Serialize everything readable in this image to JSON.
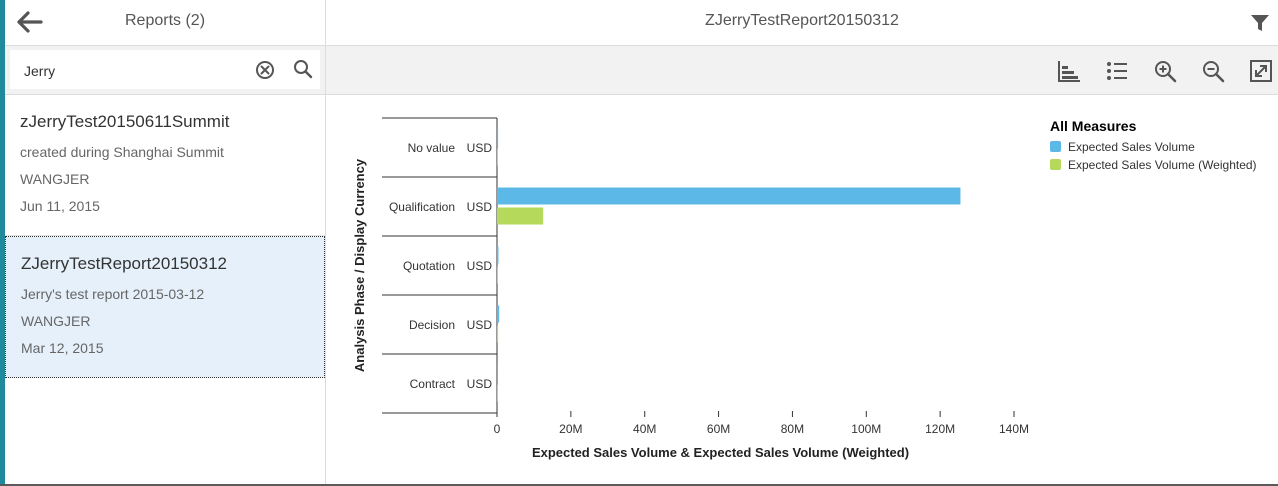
{
  "master": {
    "title": "Reports (2)"
  },
  "detail": {
    "title": "ZJerryTestReport20150312"
  },
  "search": {
    "value": "Jerry",
    "placeholder": ""
  },
  "icons": {
    "back": "arrow-left-icon",
    "filter": "filter-icon",
    "clear": "clear-icon",
    "search": "search-icon",
    "chart_type": "bar-chart-icon",
    "list": "list-icon",
    "zoom_in": "zoom-in-icon",
    "zoom_out": "zoom-out-icon",
    "fullscreen": "fullscreen-icon"
  },
  "reports": [
    {
      "title": "zJerryTest20150611Summit",
      "description": "created during Shanghai Summit",
      "owner": "WANGJER",
      "date": "Jun 11, 2015",
      "selected": false
    },
    {
      "title": "ZJerryTestReport20150312",
      "description": "Jerry's test report 2015-03-12",
      "owner": "WANGJER",
      "date": "Mar 12, 2015",
      "selected": true
    }
  ],
  "colors": {
    "accent": "#1f8a9c",
    "series1": "#5cb8e6",
    "series2": "#b5d95a",
    "selected_bg": "#e5f0fa"
  },
  "chart_data": {
    "type": "bar",
    "orientation": "horizontal",
    "categories": [
      {
        "phase": "No value",
        "currency": "USD"
      },
      {
        "phase": "Qualification",
        "currency": "USD"
      },
      {
        "phase": "Quotation",
        "currency": "USD"
      },
      {
        "phase": "Decision",
        "currency": "USD"
      },
      {
        "phase": "Contract",
        "currency": "USD"
      }
    ],
    "series": [
      {
        "name": "Expected Sales Volume",
        "values": [
          0.3,
          125.5,
          0.4,
          0.6,
          0.2
        ]
      },
      {
        "name": "Expected Sales Volume (Weighted)",
        "values": [
          0.05,
          12.5,
          0.08,
          0.3,
          0.1
        ]
      }
    ],
    "xticks": [
      "0",
      "20M",
      "40M",
      "60M",
      "80M",
      "100M",
      "120M",
      "140M"
    ],
    "xlim": [
      0,
      140
    ],
    "xlabel": "Expected Sales Volume & Expected Sales Volume (Weighted)",
    "ylabel": "Analysis Phase / Display Currency",
    "legend_title": "All Measures",
    "legend_position": "top-right",
    "grid": false
  }
}
